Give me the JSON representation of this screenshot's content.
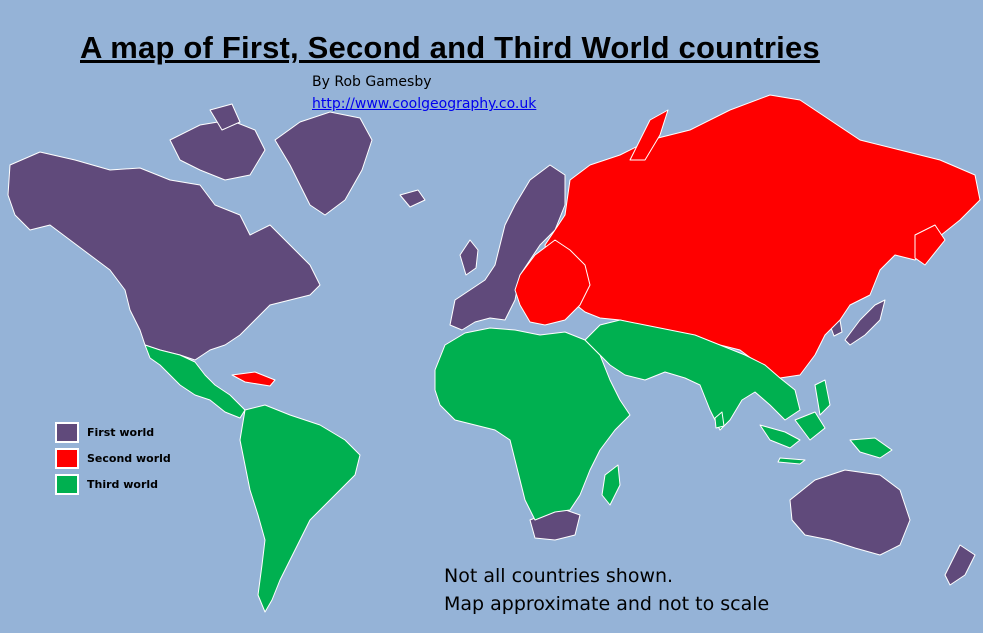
{
  "title": "A map of First, Second and Third World countries",
  "byline": "By Rob Gamesby",
  "link": "http://www.coolgeography.co.uk",
  "legend": {
    "items": [
      {
        "label": "First world",
        "color": "#604a7b"
      },
      {
        "label": "Second world",
        "color": "#ff0000"
      },
      {
        "label": "Third world",
        "color": "#00b050"
      }
    ]
  },
  "notes": {
    "line1": "Not all countries shown.",
    "line2": "Map approximate and not to scale"
  },
  "colors": {
    "ocean": "#95b3d7",
    "first_world": "#604a7b",
    "second_world": "#ff0000",
    "third_world": "#00b050"
  }
}
